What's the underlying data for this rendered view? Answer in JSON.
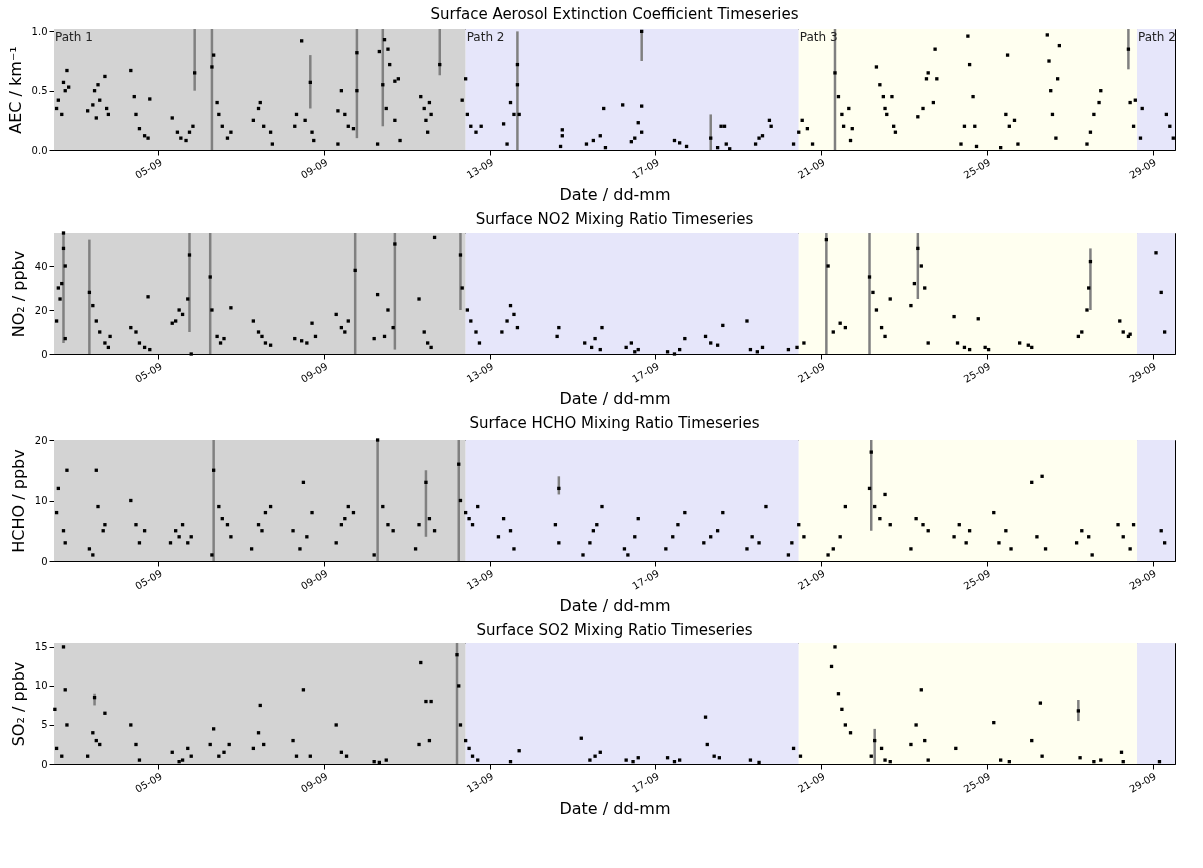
{
  "chart_data": [
    {
      "type": "scatter",
      "title": "Surface Aerosol Extinction Coefficient Timeseries",
      "xlabel": "Date / dd-mm",
      "ylabel": "AEC  / km⁻¹",
      "marker": "square",
      "xlim": [
        "--09-02T11:30",
        "--09-29T13:00"
      ],
      "xticks": [
        {
          "value": "--09-05",
          "label": "05-09"
        },
        {
          "value": "--09-09",
          "label": "09-09"
        },
        {
          "value": "--09-13",
          "label": "13-09"
        },
        {
          "value": "--09-17",
          "label": "17-09"
        },
        {
          "value": "--09-21",
          "label": "21-09"
        },
        {
          "value": "--09-25",
          "label": "25-09"
        },
        {
          "value": "--09-29",
          "label": "29-09"
        }
      ],
      "ylim": [
        0,
        1.02
      ],
      "yticks": [
        {
          "value": 0,
          "label": "0.0"
        },
        {
          "value": 0.5,
          "label": "0.5"
        },
        {
          "value": 1,
          "label": "1.0"
        }
      ],
      "bands": [
        {
          "axis": "x",
          "from": "--09-02T11:30",
          "to": "--09-12T10:00",
          "label": "Path 1",
          "color": "#d3d3d3"
        },
        {
          "axis": "x",
          "from": "--09-12T10:00",
          "to": "--09-20T11:00",
          "label": "Path 2",
          "color": "#e6e6fa"
        },
        {
          "axis": "x",
          "from": "--09-20T11:00",
          "to": "--09-28T15:00",
          "label": "Path 3",
          "color": "#fffff0"
        },
        {
          "axis": "x",
          "from": "--09-28T15:00",
          "to": "--09-29T13:00",
          "label": "Path 2",
          "color": "#e6e6fa"
        }
      ],
      "series": [
        {
          "color": "#000000",
          "x": [
            "--09-02T13:00",
            "--09-02T14:00",
            "--09-02T16:00",
            "--09-02T17:00",
            "--09-02T18:00",
            "--09-02T19:00",
            "--09-02T20:00",
            "--09-03T07:00",
            "--09-03T10:00",
            "--09-03T11:00",
            "--09-03T12:00",
            "--09-03T13:00",
            "--09-03T14:00",
            "--09-03T17:00",
            "--09-03T18:00",
            "--09-03T19:00",
            "--09-04T08:00",
            "--09-04T10:00",
            "--09-04T11:00",
            "--09-04T13:00",
            "--09-04T16:00",
            "--09-04T18:00",
            "--09-04T19:00",
            "--09-05T08:00",
            "--09-05T11:00",
            "--09-05T13:00",
            "--09-05T16:00",
            "--09-05T18:00",
            "--09-05T20:00",
            "--09-06T08:00",
            "--09-06T10:00",
            "--09-06T11:00",
            "--09-06T13:00",
            "--09-06T16:00",
            "--09-06T18:00",
            "--09-07T07:00",
            "--09-07T10:00",
            "--09-07T11:00",
            "--09-07T13:00",
            "--09-07T17:00",
            "--09-07T18:00",
            "--09-08T07:00",
            "--09-08T08:00",
            "--09-08T11:00",
            "--09-08T13:00",
            "--09-08T17:00",
            "--09-08T18:00",
            "--09-09T08:00",
            "--09-09T08:00",
            "--09-09T10:00",
            "--09-09T12:00",
            "--09-09T14:00",
            "--09-09T17:00",
            "--09-09T19:00",
            "--09-10T07:00",
            "--09-10T08:00",
            "--09-10T11:00",
            "--09-10T12:00",
            "--09-10T13:00",
            "--09-10T14:00",
            "--09-10T17:00",
            "--09-10T17:00",
            "--09-10T19:00",
            "--09-10T20:00",
            "--09-11T08:00",
            "--09-11T10:00",
            "--09-11T11:00",
            "--09-11T12:00",
            "--09-11T13:00",
            "--09-11T14:00",
            "--09-12T08:00",
            "--09-12T10:00",
            "--09-12T11:00",
            "--09-12T13:00",
            "--09-12T16:00",
            "--09-12T19:00",
            "--09-13T08:00",
            "--09-13T10:00",
            "--09-13T12:00",
            "--09-13T14:00",
            "--09-13T16:00",
            "--09-13T17:00",
            "--09-14T17:00",
            "--09-14T18:00",
            "--09-14T18:00",
            "--09-15T08:00",
            "--09-15T12:00",
            "--09-15T16:00",
            "--09-15T18:00",
            "--09-15T19:00",
            "--09-16T05:00",
            "--09-16T10:00",
            "--09-16T12:00",
            "--09-16T14:00",
            "--09-16T16:00",
            "--09-16T16:00",
            "--09-17T11:00",
            "--09-17T14:00",
            "--09-17T18:00",
            "--09-18T12:00",
            "--09-18T14:00",
            "--09-18T16:00",
            "--09-18T17:00",
            "--09-18T19:00",
            "--09-19T10:00",
            "--09-19T12:00",
            "--09-19T14:00",
            "--09-19T18:00",
            "--09-19T19:00",
            "--09-20T08:00",
            "--09-20T11:00",
            "--09-20T13:00",
            "--09-20T16:00",
            "--09-20T19:00",
            "--09-21T10:00",
            "--09-21T12:00",
            "--09-21T13:00",
            "--09-21T16:00",
            "--09-21T17:00",
            "--09-21T18:00",
            "--09-22T08:00",
            "--09-22T10:00",
            "--09-22T12:00",
            "--09-22T13:00",
            "--09-22T14:00",
            "--09-22T17:00",
            "--09-22T18:00",
            "--09-22T19:00",
            "--09-23T08:00",
            "--09-23T11:00",
            "--09-23T13:00",
            "--09-23T14:00",
            "--09-23T17:00",
            "--09-23T18:00",
            "--09-23T19:00",
            "--09-24T09:00",
            "--09-24T11:00",
            "--09-24T13:00",
            "--09-24T14:00",
            "--09-24T16:00",
            "--09-24T17:00",
            "--09-24T18:00",
            "--09-25T08:00",
            "--09-25T11:00",
            "--09-25T12:00",
            "--09-25T13:00",
            "--09-25T16:00",
            "--09-25T18:00",
            "--09-26T11:00",
            "--09-26T12:00",
            "--09-26T13:00",
            "--09-26T14:00",
            "--09-26T16:00",
            "--09-26T17:00",
            "--09-26T18:00",
            "--09-27T10:00",
            "--09-27T12:00",
            "--09-27T14:00",
            "--09-27T17:00",
            "--09-27T18:00",
            "--09-28T11:00",
            "--09-28T13:00",
            "--09-28T14:00",
            "--09-28T17:00",
            "--09-28T18:00",
            "--09-29T08:00",
            "--09-29T10:00",
            "--09-29T12:00"
          ],
          "values": [
            0.35,
            0.42,
            0.3,
            0.57,
            0.5,
            0.67,
            0.53,
            0.33,
            0.38,
            0.5,
            0.27,
            0.55,
            0.42,
            0.62,
            0.35,
            0.3,
            0.67,
            0.45,
            0.3,
            0.18,
            0.12,
            0.1,
            0.43,
            0.27,
            0.15,
            0.1,
            0.08,
            0.15,
            0.2,
            0.8,
            0.4,
            0.3,
            0.2,
            0.1,
            0.15,
            0.25,
            0.35,
            0.4,
            0.2,
            0.15,
            0.05,
            0.2,
            0.3,
            0.92,
            0.25,
            0.15,
            0.08,
            0.05,
            0.33,
            0.5,
            0.3,
            0.2,
            0.18,
            0.5,
            0.05,
            0.83,
            0.93,
            0.35,
            0.85,
            0.72,
            0.58,
            0.25,
            0.6,
            0.08,
            0.45,
            0.35,
            0.25,
            0.15,
            0.4,
            0.3,
            0.42,
            0.6,
            0.3,
            0.2,
            0.15,
            0.2,
            0.22,
            0.05,
            0.4,
            0.3,
            0.55,
            0.3,
            0.03,
            0.12,
            0.17,
            0.05,
            0.08,
            0.12,
            0.35,
            0.02,
            0.38,
            0.07,
            0.1,
            0.23,
            0.15,
            0.37,
            0.08,
            0.06,
            0.03,
            0.02,
            0.2,
            0.2,
            0.05,
            0.01,
            0.05,
            0.1,
            0.12,
            0.25,
            0.2,
            0.05,
            0.15,
            0.25,
            0.18,
            0.05,
            0.45,
            0.3,
            0.2,
            0.35,
            0.08,
            0.18,
            0.7,
            0.55,
            0.45,
            0.35,
            0.3,
            0.45,
            0.2,
            0.15,
            0.28,
            0.35,
            0.6,
            0.65,
            0.4,
            0.85,
            0.6,
            0.05,
            0.2,
            0.96,
            0.72,
            0.45,
            0.2,
            0.03,
            0.02,
            0.3,
            0.8,
            0.2,
            0.25,
            0.05,
            0.97,
            0.75,
            0.5,
            0.3,
            0.1,
            0.6,
            0.88,
            0.05,
            0.15,
            0.3,
            0.4,
            0.5,
            0.4,
            0.2,
            0.42,
            0.1,
            0.35,
            0.3,
            0.2,
            0.1
          ]
        },
        {
          "color": "#000000",
          "x": [
            "--09-05T21:00",
            "--09-06T07:00",
            "--09-08T16:00",
            "--09-09T19:00",
            "--09-10T10:00",
            "--09-11T19:00",
            "--09-13T16:00",
            "--09-16T16:00",
            "--09-18T08:00",
            "--09-21T08:00",
            "--09-28T10:00"
          ],
          "values": [
            0.65,
            0.7,
            0.57,
            0.82,
            0.55,
            0.72,
            0.72,
            1.0,
            0.1,
            0.65,
            0.85
          ],
          "errors": [
            [
              0.5,
              1.02
            ],
            [
              0,
              1.02
            ],
            [
              0.35,
              0.8
            ],
            [
              0.1,
              1.02
            ],
            [
              0.2,
              1.02
            ],
            [
              0.63,
              1.02
            ],
            [
              0,
              1.0
            ],
            [
              0.75,
              1.0
            ],
            [
              0,
              0.3
            ],
            [
              0,
              1.02
            ],
            [
              0.68,
              1.02
            ]
          ]
        }
      ]
    },
    {
      "type": "scatter",
      "title": "Surface NO2 Mixing Ratio Timeseries",
      "xlabel": "Date / dd-mm",
      "ylabel": "NO₂ / ppbv",
      "marker": "square",
      "xlim": [
        "--09-02T11:30",
        "--09-29T13:00"
      ],
      "xticks": [
        {
          "value": "--09-05",
          "label": "05-09"
        },
        {
          "value": "--09-09",
          "label": "09-09"
        },
        {
          "value": "--09-13",
          "label": "13-09"
        },
        {
          "value": "--09-17",
          "label": "17-09"
        },
        {
          "value": "--09-21",
          "label": "21-09"
        },
        {
          "value": "--09-25",
          "label": "25-09"
        },
        {
          "value": "--09-29",
          "label": "29-09"
        }
      ],
      "ylim": [
        0,
        55
      ],
      "yticks": [
        0,
        20,
        40
      ],
      "bands": [
        {
          "axis": "x",
          "from": "--09-02T11:30",
          "to": "--09-12T10:00",
          "color": "#d3d3d3"
        },
        {
          "axis": "x",
          "from": "--09-12T10:00",
          "to": "--09-20T11:00",
          "color": "#e6e6fa"
        },
        {
          "axis": "x",
          "from": "--09-20T11:00",
          "to": "--09-28T15:00",
          "color": "#fffff0"
        },
        {
          "axis": "x",
          "from": "--09-28T15:00",
          "to": "--09-29T13:00",
          "color": "#e6e6fa"
        }
      ],
      "series": [
        {
          "color": "#000000",
          "x": [
            "--09-02T13:00",
            "--09-02T14:00",
            "--09-02T15:00",
            "--09-02T16:00",
            "--09-02T17:00",
            "--09-02T18:00",
            "--09-02T18:00",
            "--09-03T10:00",
            "--09-03T12:00",
            "--09-03T14:00",
            "--09-03T17:00",
            "--09-03T19:00",
            "--09-03T20:00",
            "--09-04T08:00",
            "--09-04T11:00",
            "--09-04T13:00",
            "--09-04T16:00",
            "--09-04T18:00",
            "--09-04T19:00",
            "--09-05T08:00",
            "--09-05T10:00",
            "--09-05T12:00",
            "--09-05T14:00",
            "--09-05T17:00",
            "--09-05T19:00",
            "--09-06T07:00",
            "--09-06T10:00",
            "--09-06T12:00",
            "--09-06T14:00",
            "--09-06T18:00",
            "--09-07T07:00",
            "--09-07T10:00",
            "--09-07T12:00",
            "--09-07T14:00",
            "--09-07T17:00",
            "--09-08T07:00",
            "--09-08T11:00",
            "--09-08T14:00",
            "--09-08T17:00",
            "--09-08T19:00",
            "--09-09T07:00",
            "--09-09T10:00",
            "--09-09T12:00",
            "--09-09T14:00",
            "--09-10T05:00",
            "--09-10T07:00",
            "--09-10T11:00",
            "--09-10T13:00",
            "--09-10T16:00",
            "--09-11T07:00",
            "--09-11T10:00",
            "--09-11T12:00",
            "--09-11T14:00",
            "--09-11T16:00",
            "--09-12T08:00",
            "--09-12T11:00",
            "--09-12T13:00",
            "--09-12T16:00",
            "--09-12T18:00",
            "--09-13T07:00",
            "--09-13T10:00",
            "--09-13T12:00",
            "--09-13T14:00",
            "--09-13T16:00",
            "--09-14T15:00",
            "--09-14T16:00",
            "--09-15T07:00",
            "--09-15T11:00",
            "--09-15T13:00",
            "--09-15T16:00",
            "--09-15T17:00",
            "--09-16T07:00",
            "--09-16T10:00",
            "--09-16T12:00",
            "--09-16T14:00",
            "--09-17T07:00",
            "--09-17T11:00",
            "--09-17T14:00",
            "--09-17T17:00",
            "--09-18T05:00",
            "--09-18T08:00",
            "--09-18T12:00",
            "--09-18T15:00",
            "--09-19T05:00",
            "--09-19T07:00",
            "--09-19T11:00",
            "--09-19T14:00",
            "--09-20T05:00",
            "--09-20T10:00",
            "--09-20T14:00",
            "--09-21T04:00",
            "--09-21T07:00",
            "--09-21T11:00",
            "--09-21T14:00",
            "--09-22T06:00",
            "--09-22T08:00",
            "--09-22T11:00",
            "--09-22T13:00",
            "--09-22T16:00",
            "--09-23T04:00",
            "--09-23T06:00",
            "--09-23T10:00",
            "--09-23T12:00",
            "--09-23T14:00",
            "--09-24T05:00",
            "--09-24T07:00",
            "--09-24T11:00",
            "--09-24T14:00",
            "--09-24T19:00",
            "--09-24T23:00",
            "--09-25T01:00",
            "--09-25T19:00",
            "--09-26T00:00",
            "--09-26T02:00",
            "--09-27T05:00",
            "--09-27T07:00",
            "--09-27T10:00",
            "--09-27T11:00",
            "--09-28T05:00",
            "--09-28T07:00",
            "--09-28T10:00",
            "--09-28T11:00",
            "--09-29T02:00",
            "--09-29T05:00",
            "--09-29T07:00"
          ],
          "values": [
            15,
            30,
            25,
            32,
            55,
            7,
            40,
            22,
            15,
            10,
            5,
            3,
            8,
            12,
            10,
            5,
            3,
            26,
            2,
            14,
            15,
            20,
            18,
            25,
            0,
            20,
            8,
            5,
            7,
            21,
            15,
            10,
            8,
            5,
            4,
            7,
            6,
            5,
            14,
            8,
            18,
            12,
            10,
            15,
            7,
            27,
            8,
            20,
            12,
            25,
            10,
            5,
            3,
            53,
            30,
            20,
            15,
            10,
            5,
            10,
            15,
            22,
            18,
            12,
            8,
            12,
            5,
            3,
            7,
            2,
            12,
            3,
            5,
            1,
            2,
            1,
            0,
            2,
            7,
            8,
            5,
            4,
            13,
            15,
            2,
            1,
            3,
            2,
            3,
            5,
            40,
            10,
            14,
            12,
            28,
            20,
            12,
            8,
            25,
            22,
            32,
            40,
            30,
            5,
            17,
            5,
            3,
            2,
            16,
            3,
            2,
            5,
            4,
            3,
            8,
            10,
            20,
            30,
            15,
            10,
            8,
            9,
            46,
            28,
            10
          ]
        },
        {
          "color": "#000000",
          "x": [
            "--09-02T17:00",
            "--09-03T08:00",
            "--09-05T18:00",
            "--09-06T06:00",
            "--09-09T18:00",
            "--09-10T17:00",
            "--09-12T07:00",
            "--09-21T03:00",
            "--09-22T04:00",
            "--09-23T08:00",
            "--09-27T12:00"
          ],
          "values": [
            48,
            28,
            45,
            35,
            38,
            50,
            45,
            52,
            35,
            48,
            42
          ],
          "errors": [
            [
              5,
              55
            ],
            [
              0,
              52
            ],
            [
              10,
              55
            ],
            [
              0,
              55
            ],
            [
              0,
              55
            ],
            [
              2,
              55
            ],
            [
              20,
              55
            ],
            [
              0,
              55
            ],
            [
              0,
              55
            ],
            [
              25,
              55
            ],
            [
              20,
              48
            ]
          ]
        }
      ]
    },
    {
      "type": "scatter",
      "title": "Surface HCHO Mixing Ratio Timeseries",
      "xlabel": "Date / dd-mm",
      "ylabel": "HCHO / ppbv",
      "marker": "square",
      "xlim": [
        "--09-02T11:30",
        "--09-29T13:00"
      ],
      "xticks": [
        {
          "value": "--09-05",
          "label": "05-09"
        },
        {
          "value": "--09-09",
          "label": "09-09"
        },
        {
          "value": "--09-13",
          "label": "13-09"
        },
        {
          "value": "--09-17",
          "label": "17-09"
        },
        {
          "value": "--09-21",
          "label": "21-09"
        },
        {
          "value": "--09-25",
          "label": "25-09"
        },
        {
          "value": "--09-29",
          "label": "29-09"
        }
      ],
      "ylim": [
        0,
        20
      ],
      "yticks": [
        0,
        10,
        20
      ],
      "bands": [
        {
          "axis": "x",
          "from": "--09-02T11:30",
          "to": "--09-12T10:00",
          "color": "#d3d3d3"
        },
        {
          "axis": "x",
          "from": "--09-12T10:00",
          "to": "--09-20T11:00",
          "color": "#e6e6fa"
        },
        {
          "axis": "x",
          "from": "--09-20T11:00",
          "to": "--09-28T15:00",
          "color": "#fffff0"
        },
        {
          "axis": "x",
          "from": "--09-28T15:00",
          "to": "--09-29T13:00",
          "color": "#e6e6fa"
        }
      ],
      "series": [
        {
          "color": "#000000",
          "x": [
            "--09-02T13:00",
            "--09-02T14:00",
            "--09-02T17:00",
            "--09-02T18:00",
            "--09-02T19:00",
            "--09-03T08:00",
            "--09-03T10:00",
            "--09-03T12:00",
            "--09-03T13:00",
            "--09-03T16:00",
            "--09-03T17:00",
            "--09-04T08:00",
            "--09-04T11:00",
            "--09-04T13:00",
            "--09-04T16:00",
            "--09-05T07:00",
            "--09-05T10:00",
            "--09-05T12:00",
            "--09-05T14:00",
            "--09-05T17:00",
            "--09-05T19:00",
            "--09-06T07:00",
            "--09-06T11:00",
            "--09-06T13:00",
            "--09-06T16:00",
            "--09-06T18:00",
            "--09-07T06:00",
            "--09-07T10:00",
            "--09-07T12:00",
            "--09-07T14:00",
            "--09-07T17:00",
            "--09-08T06:00",
            "--09-08T10:00",
            "--09-08T12:00",
            "--09-08T14:00",
            "--09-08T17:00",
            "--09-09T07:00",
            "--09-09T10:00",
            "--09-09T12:00",
            "--09-09T14:00",
            "--09-09T17:00",
            "--09-10T05:00",
            "--09-10T10:00",
            "--09-10T13:00",
            "--09-10T16:00",
            "--09-11T05:00",
            "--09-11T07:00",
            "--09-11T13:00",
            "--09-11T16:00",
            "--09-12T07:00",
            "--09-12T10:00",
            "--09-12T12:00",
            "--09-12T14:00",
            "--09-12T17:00",
            "--09-13T05:00",
            "--09-13T08:00",
            "--09-13T12:00",
            "--09-13T14:00",
            "--09-14T14:00",
            "--09-14T16:00",
            "--09-15T06:00",
            "--09-15T10:00",
            "--09-15T12:00",
            "--09-15T14:00",
            "--09-15T17:00",
            "--09-16T06:00",
            "--09-16T08:00",
            "--09-16T12:00",
            "--09-16T14:00",
            "--09-17T06:00",
            "--09-17T10:00",
            "--09-17T13:00",
            "--09-17T17:00",
            "--09-18T04:00",
            "--09-18T08:00",
            "--09-18T12:00",
            "--09-18T15:00",
            "--09-19T05:00",
            "--09-19T08:00",
            "--09-19T12:00",
            "--09-19T16:00",
            "--09-20T05:00",
            "--09-20T07:00",
            "--09-20T11:00",
            "--09-20T14:00",
            "--09-21T04:00",
            "--09-21T07:00",
            "--09-21T11:00",
            "--09-21T14:00",
            "--09-22T04:00",
            "--09-22T07:00",
            "--09-22T10:00",
            "--09-22T13:00",
            "--09-22T16:00",
            "--09-23T04:00",
            "--09-23T07:00",
            "--09-23T11:00",
            "--09-23T14:00",
            "--09-24T05:00",
            "--09-24T08:00",
            "--09-24T12:00",
            "--09-24T14:00",
            "--09-25T04:00",
            "--09-25T07:00",
            "--09-25T11:00",
            "--09-25T14:00",
            "--09-26T02:00",
            "--09-26T05:00",
            "--09-26T08:00",
            "--09-26T10:00",
            "--09-27T04:00",
            "--09-27T07:00",
            "--09-27T11:00",
            "--09-27T13:00",
            "--09-28T04:00",
            "--09-28T07:00",
            "--09-28T11:00",
            "--09-28T13:00",
            "--09-29T05:00",
            "--09-29T07:00"
          ],
          "values": [
            8,
            12,
            5,
            3,
            15,
            2,
            1,
            15,
            9,
            5,
            6,
            10,
            6,
            3,
            5,
            3,
            5,
            4,
            6,
            3,
            4,
            1,
            9,
            7,
            6,
            4,
            2,
            6,
            5,
            8,
            9,
            5,
            2,
            13,
            4,
            8,
            3,
            6,
            7,
            9,
            8,
            1,
            9,
            6,
            5,
            2,
            6,
            7,
            5,
            10,
            8,
            7,
            6,
            9,
            4,
            7,
            5,
            2,
            6,
            3,
            1,
            3,
            5,
            6,
            9,
            2,
            1,
            4,
            7,
            2,
            4,
            6,
            8,
            3,
            4,
            5,
            8,
            2,
            4,
            3,
            9,
            1,
            3,
            6,
            4,
            1,
            2,
            4,
            9,
            12,
            9,
            7,
            11,
            6,
            2,
            7,
            6,
            5,
            4,
            6,
            3,
            5,
            8,
            3,
            5,
            2,
            13,
            4,
            14,
            2,
            3,
            5,
            4,
            1,
            6,
            4,
            2,
            6,
            5,
            3
          ]
        },
        {
          "color": "#000000",
          "x": [
            "--09-06T08:00",
            "--09-10T07:00",
            "--09-11T11:00",
            "--09-12T06:00",
            "--09-14T16:00",
            "--09-22T05:00"
          ],
          "values": [
            15,
            20,
            13,
            16,
            12,
            18
          ],
          "errors": [
            [
              0,
              20
            ],
            [
              0,
              20
            ],
            [
              4,
              15
            ],
            [
              0,
              20
            ],
            [
              11,
              14
            ],
            [
              5,
              20
            ]
          ]
        }
      ]
    },
    {
      "type": "scatter",
      "title": "Surface SO2 Mixing Ratio Timeseries",
      "xlabel": "Date / dd-mm",
      "ylabel": "SO₂ / ppbv",
      "marker": "square",
      "xlim": [
        "--09-02T11:30",
        "--09-29T13:00"
      ],
      "xticks": [
        {
          "value": "--09-05",
          "label": "05-09"
        },
        {
          "value": "--09-09",
          "label": "09-09"
        },
        {
          "value": "--09-13",
          "label": "13-09"
        },
        {
          "value": "--09-17",
          "label": "17-09"
        },
        {
          "value": "--09-21",
          "label": "21-09"
        },
        {
          "value": "--09-25",
          "label": "25-09"
        },
        {
          "value": "--09-29",
          "label": "29-09"
        }
      ],
      "ylim": [
        0,
        15.5
      ],
      "yticks": [
        0,
        5,
        10,
        15
      ],
      "bands": [
        {
          "axis": "x",
          "from": "--09-02T11:30",
          "to": "--09-12T10:00",
          "color": "#d3d3d3"
        },
        {
          "axis": "x",
          "from": "--09-12T10:00",
          "to": "--09-20T11:00",
          "color": "#e6e6fa"
        },
        {
          "axis": "x",
          "from": "--09-20T11:00",
          "to": "--09-28T15:00",
          "color": "#fffff0"
        },
        {
          "axis": "x",
          "from": "--09-28T15:00",
          "to": "--09-29T13:00",
          "color": "#e6e6fa"
        }
      ],
      "series": [
        {
          "color": "#000000",
          "x": [
            "--09-02T12:00",
            "--09-02T13:00",
            "--09-02T16:00",
            "--09-02T17:00",
            "--09-02T18:00",
            "--09-02T19:00",
            "--09-03T07:00",
            "--09-03T10:00",
            "--09-03T12:00",
            "--09-03T14:00",
            "--09-03T17:00",
            "--09-04T08:00",
            "--09-04T11:00",
            "--09-04T13:00",
            "--09-05T08:00",
            "--09-05T12:00",
            "--09-05T14:00",
            "--09-05T17:00",
            "--09-05T19:00",
            "--09-06T06:00",
            "--09-06T08:00",
            "--09-06T11:00",
            "--09-06T14:00",
            "--09-06T17:00",
            "--09-07T07:00",
            "--09-07T10:00",
            "--09-07T11:00",
            "--09-07T13:00",
            "--09-08T06:00",
            "--09-08T08:00",
            "--09-08T12:00",
            "--09-08T16:00",
            "--09-09T07:00",
            "--09-09T10:00",
            "--09-09T13:00",
            "--09-10T05:00",
            "--09-10T08:00",
            "--09-10T12:00",
            "--09-11T07:00",
            "--09-11T08:00",
            "--09-11T11:00",
            "--09-11T13:00",
            "--09-11T14:00",
            "--09-12T06:00",
            "--09-12T07:00",
            "--09-12T10:00",
            "--09-12T12:00",
            "--09-12T14:00",
            "--09-12T17:00",
            "--09-13T12:00",
            "--09-13T17:00",
            "--09-15T05:00",
            "--09-15T10:00",
            "--09-15T13:00",
            "--09-15T16:00",
            "--09-16T07:00",
            "--09-16T11:00",
            "--09-16T14:00",
            "--09-17T07:00",
            "--09-17T11:00",
            "--09-17T14:00",
            "--09-18T05:00",
            "--09-18T06:00",
            "--09-18T10:00",
            "--09-18T13:00",
            "--09-19T07:00",
            "--09-19T12:00",
            "--09-20T08:00",
            "--09-20T12:00",
            "--09-21T06:00",
            "--09-21T08:00",
            "--09-21T10:00",
            "--09-21T12:00",
            "--09-21T14:00",
            "--09-21T17:00",
            "--09-22T05:00",
            "--09-22T11:00",
            "--09-22T13:00",
            "--09-22T16:00",
            "--09-23T04:00",
            "--09-23T07:00",
            "--09-23T10:00",
            "--09-23T12:00",
            "--09-23T14:00",
            "--09-24T06:00",
            "--09-25T04:00",
            "--09-25T08:00",
            "--09-25T13:00",
            "--09-26T02:00",
            "--09-26T07:00",
            "--09-26T08:00",
            "--09-27T06:00",
            "--09-27T14:00",
            "--09-27T18:00",
            "--09-28T06:00",
            "--09-28T07:00",
            "--09-29T04:00"
          ],
          "values": [
            7,
            2,
            1,
            15,
            9.5,
            5,
            1,
            4,
            3,
            2.5,
            6.5,
            5,
            2.5,
            0.5,
            1.5,
            0.3,
            0.5,
            2,
            1,
            2.5,
            4.5,
            1,
            1.5,
            2.5,
            2,
            4,
            7.5,
            2.5,
            3,
            1,
            9.5,
            1,
            5,
            1.5,
            1,
            0.3,
            0.2,
            0.5,
            2.5,
            13,
            8,
            3,
            8,
            10,
            5,
            3,
            2,
            1,
            0.5,
            0.3,
            1.7,
            3.3,
            0.5,
            1,
            1.5,
            0.5,
            0.3,
            0.8,
            0.8,
            0.3,
            0.5,
            6,
            2.5,
            1,
            0.8,
            0.5,
            0.2,
            2,
            1,
            12.5,
            15,
            9,
            7,
            5,
            4,
            1,
            2,
            0.5,
            0.3,
            2.5,
            5,
            9.5,
            3,
            0.5,
            2,
            5.3,
            0.5,
            0.3,
            3,
            7.8,
            1,
            0.8,
            0.3,
            0.5,
            1.5,
            0.3,
            0.3
          ]
        },
        {
          "color": "#000000",
          "x": [
            "--09-03T11:00",
            "--09-12T05:00",
            "--09-22T07:00",
            "--09-27T05:00"
          ],
          "values": [
            8.5,
            14,
            3,
            6.8
          ],
          "errors": [
            [
              7.5,
              9
            ],
            [
              0,
              15.5
            ],
            [
              0,
              4.5
            ],
            [
              5.5,
              8.2
            ]
          ]
        }
      ]
    }
  ]
}
